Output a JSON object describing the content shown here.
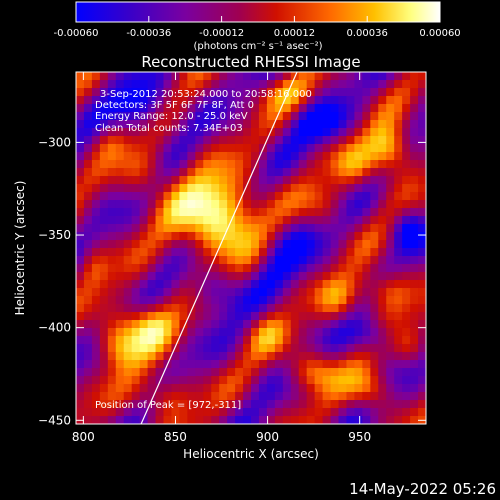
{
  "colorbar": {
    "tick_labels": [
      "-0.00060",
      "-0.00036",
      "-0.00012",
      "0.00012",
      "0.00036",
      "0.00060"
    ],
    "tick_values": [
      -0.0006,
      -0.00036,
      -0.00012,
      0.00012,
      0.00036,
      0.0006
    ],
    "range": [
      -0.0006,
      0.0006
    ],
    "units": "(photons cm⁻² s⁻¹ asec⁻²)",
    "colors": [
      "#0000ff",
      "#3a00c8",
      "#7a00a0",
      "#a00050",
      "#d01000",
      "#ff6a00",
      "#ffc000",
      "#ffff80",
      "#ffffff"
    ]
  },
  "annotations": {
    "time_range": "3-Sep-2012 20:53:24.000 to 20:58:16.000",
    "detectors": "Detectors: 3F 5F 6F 7F 8F, Att 0",
    "energy": "Energy Range: 12.0 - 25.0 keV",
    "clean": "Clean    Total counts: 7.34E+03",
    "peak": "Position of Peak = [972,-311]"
  },
  "footer": {
    "date": "14-May-2022 05:26"
  },
  "chart_data": {
    "type": "heatmap",
    "title": "Reconstructed RHESSI Image",
    "xlabel": "Heliocentric X (arcsec)",
    "ylabel": "Heliocentric Y (arcsec)",
    "xlim": [
      796,
      986
    ],
    "ylim": [
      -452,
      -262
    ],
    "xticks": [
      800,
      850,
      900,
      950
    ],
    "yticks": [
      -300,
      -350,
      -400,
      -450
    ],
    "peak": [
      972,
      -311
    ],
    "limb_line": {
      "x": [
        830,
        916
      ],
      "y": [
        -455,
        -262
      ]
    },
    "grid": false,
    "legend": "colorbar top",
    "colormap": [
      "#0000ff",
      "#3a00c8",
      "#7a00a0",
      "#a00050",
      "#d01000",
      "#ff6a00",
      "#ffc000",
      "#ffff80",
      "#ffffff"
    ]
  }
}
